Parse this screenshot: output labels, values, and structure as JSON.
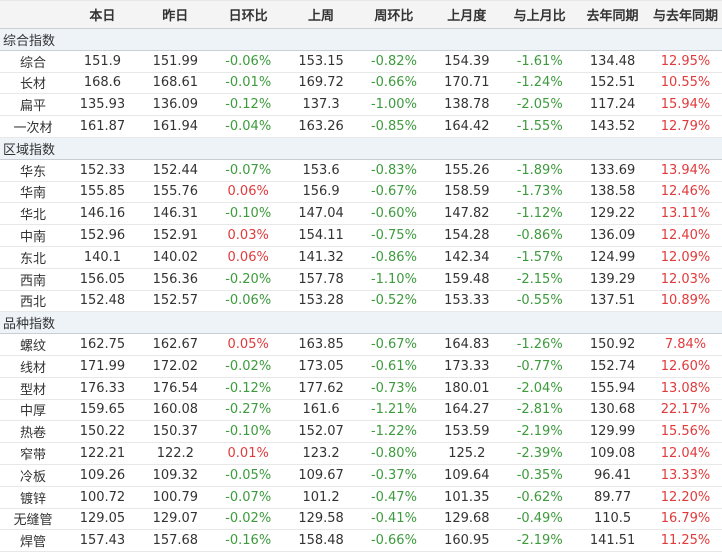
{
  "colors": {
    "positive_red": "#e03b3c",
    "negative_green": "#3d9b3d",
    "header_bg": "#f4f4f4",
    "section_row_bg": "#eef3f8"
  },
  "chart_data": {
    "type": "table",
    "columns": [
      "",
      "本日",
      "昨日",
      "日环比",
      "上周",
      "周环比",
      "上月度",
      "与上月比",
      "去年同期",
      "与去年同期"
    ],
    "sections": [
      {
        "title": "综合指数",
        "rows": [
          {
            "label": "综合",
            "values": [
              "151.9",
              "151.99",
              "-0.06%",
              "153.15",
              "-0.82%",
              "154.39",
              "-1.61%",
              "134.48",
              "12.95%"
            ]
          },
          {
            "label": "长材",
            "values": [
              "168.6",
              "168.61",
              "-0.01%",
              "169.72",
              "-0.66%",
              "170.71",
              "-1.24%",
              "152.51",
              "10.55%"
            ]
          },
          {
            "label": "扁平",
            "values": [
              "135.93",
              "136.09",
              "-0.12%",
              "137.3",
              "-1.00%",
              "138.78",
              "-2.05%",
              "117.24",
              "15.94%"
            ]
          },
          {
            "label": "一次材",
            "values": [
              "161.87",
              "161.94",
              "-0.04%",
              "163.26",
              "-0.85%",
              "164.42",
              "-1.55%",
              "143.52",
              "12.79%"
            ]
          }
        ]
      },
      {
        "title": "区域指数",
        "rows": [
          {
            "label": "华东",
            "values": [
              "152.33",
              "152.44",
              "-0.07%",
              "153.6",
              "-0.83%",
              "155.26",
              "-1.89%",
              "133.69",
              "13.94%"
            ]
          },
          {
            "label": "华南",
            "values": [
              "155.85",
              "155.76",
              "0.06%",
              "156.9",
              "-0.67%",
              "158.59",
              "-1.73%",
              "138.58",
              "12.46%"
            ]
          },
          {
            "label": "华北",
            "values": [
              "146.16",
              "146.31",
              "-0.10%",
              "147.04",
              "-0.60%",
              "147.82",
              "-1.12%",
              "129.22",
              "13.11%"
            ]
          },
          {
            "label": "中南",
            "values": [
              "152.96",
              "152.91",
              "0.03%",
              "154.11",
              "-0.75%",
              "154.28",
              "-0.86%",
              "136.09",
              "12.40%"
            ]
          },
          {
            "label": "东北",
            "values": [
              "140.1",
              "140.02",
              "0.06%",
              "141.32",
              "-0.86%",
              "142.34",
              "-1.57%",
              "124.99",
              "12.09%"
            ]
          },
          {
            "label": "西南",
            "values": [
              "156.05",
              "156.36",
              "-0.20%",
              "157.78",
              "-1.10%",
              "159.48",
              "-2.15%",
              "139.29",
              "12.03%"
            ]
          },
          {
            "label": "西北",
            "values": [
              "152.48",
              "152.57",
              "-0.06%",
              "153.28",
              "-0.52%",
              "153.33",
              "-0.55%",
              "137.51",
              "10.89%"
            ]
          }
        ]
      },
      {
        "title": "品种指数",
        "rows": [
          {
            "label": "螺纹",
            "values": [
              "162.75",
              "162.67",
              "0.05%",
              "163.85",
              "-0.67%",
              "164.83",
              "-1.26%",
              "150.92",
              "7.84%"
            ]
          },
          {
            "label": "线材",
            "values": [
              "171.99",
              "172.02",
              "-0.02%",
              "173.05",
              "-0.61%",
              "173.33",
              "-0.77%",
              "152.74",
              "12.60%"
            ]
          },
          {
            "label": "型材",
            "values": [
              "176.33",
              "176.54",
              "-0.12%",
              "177.62",
              "-0.73%",
              "180.01",
              "-2.04%",
              "155.94",
              "13.08%"
            ]
          },
          {
            "label": "中厚",
            "values": [
              "159.65",
              "160.08",
              "-0.27%",
              "161.6",
              "-1.21%",
              "164.27",
              "-2.81%",
              "130.68",
              "22.17%"
            ]
          },
          {
            "label": "热卷",
            "values": [
              "150.22",
              "150.37",
              "-0.10%",
              "152.07",
              "-1.22%",
              "153.59",
              "-2.19%",
              "129.99",
              "15.56%"
            ]
          },
          {
            "label": "窄带",
            "values": [
              "122.21",
              "122.2",
              "0.01%",
              "123.2",
              "-0.80%",
              "125.2",
              "-2.39%",
              "109.08",
              "12.04%"
            ]
          },
          {
            "label": "冷板",
            "values": [
              "109.26",
              "109.32",
              "-0.05%",
              "109.67",
              "-0.37%",
              "109.64",
              "-0.35%",
              "96.41",
              "13.33%"
            ]
          },
          {
            "label": "镀锌",
            "values": [
              "100.72",
              "100.79",
              "-0.07%",
              "101.2",
              "-0.47%",
              "101.35",
              "-0.62%",
              "89.77",
              "12.20%"
            ]
          },
          {
            "label": "无缝管",
            "values": [
              "129.05",
              "129.07",
              "-0.02%",
              "129.58",
              "-0.41%",
              "129.68",
              "-0.49%",
              "110.5",
              "16.79%"
            ]
          },
          {
            "label": "焊管",
            "values": [
              "157.43",
              "157.68",
              "-0.16%",
              "158.48",
              "-0.66%",
              "160.95",
              "-2.19%",
              "141.51",
              "11.25%"
            ]
          }
        ]
      }
    ]
  }
}
